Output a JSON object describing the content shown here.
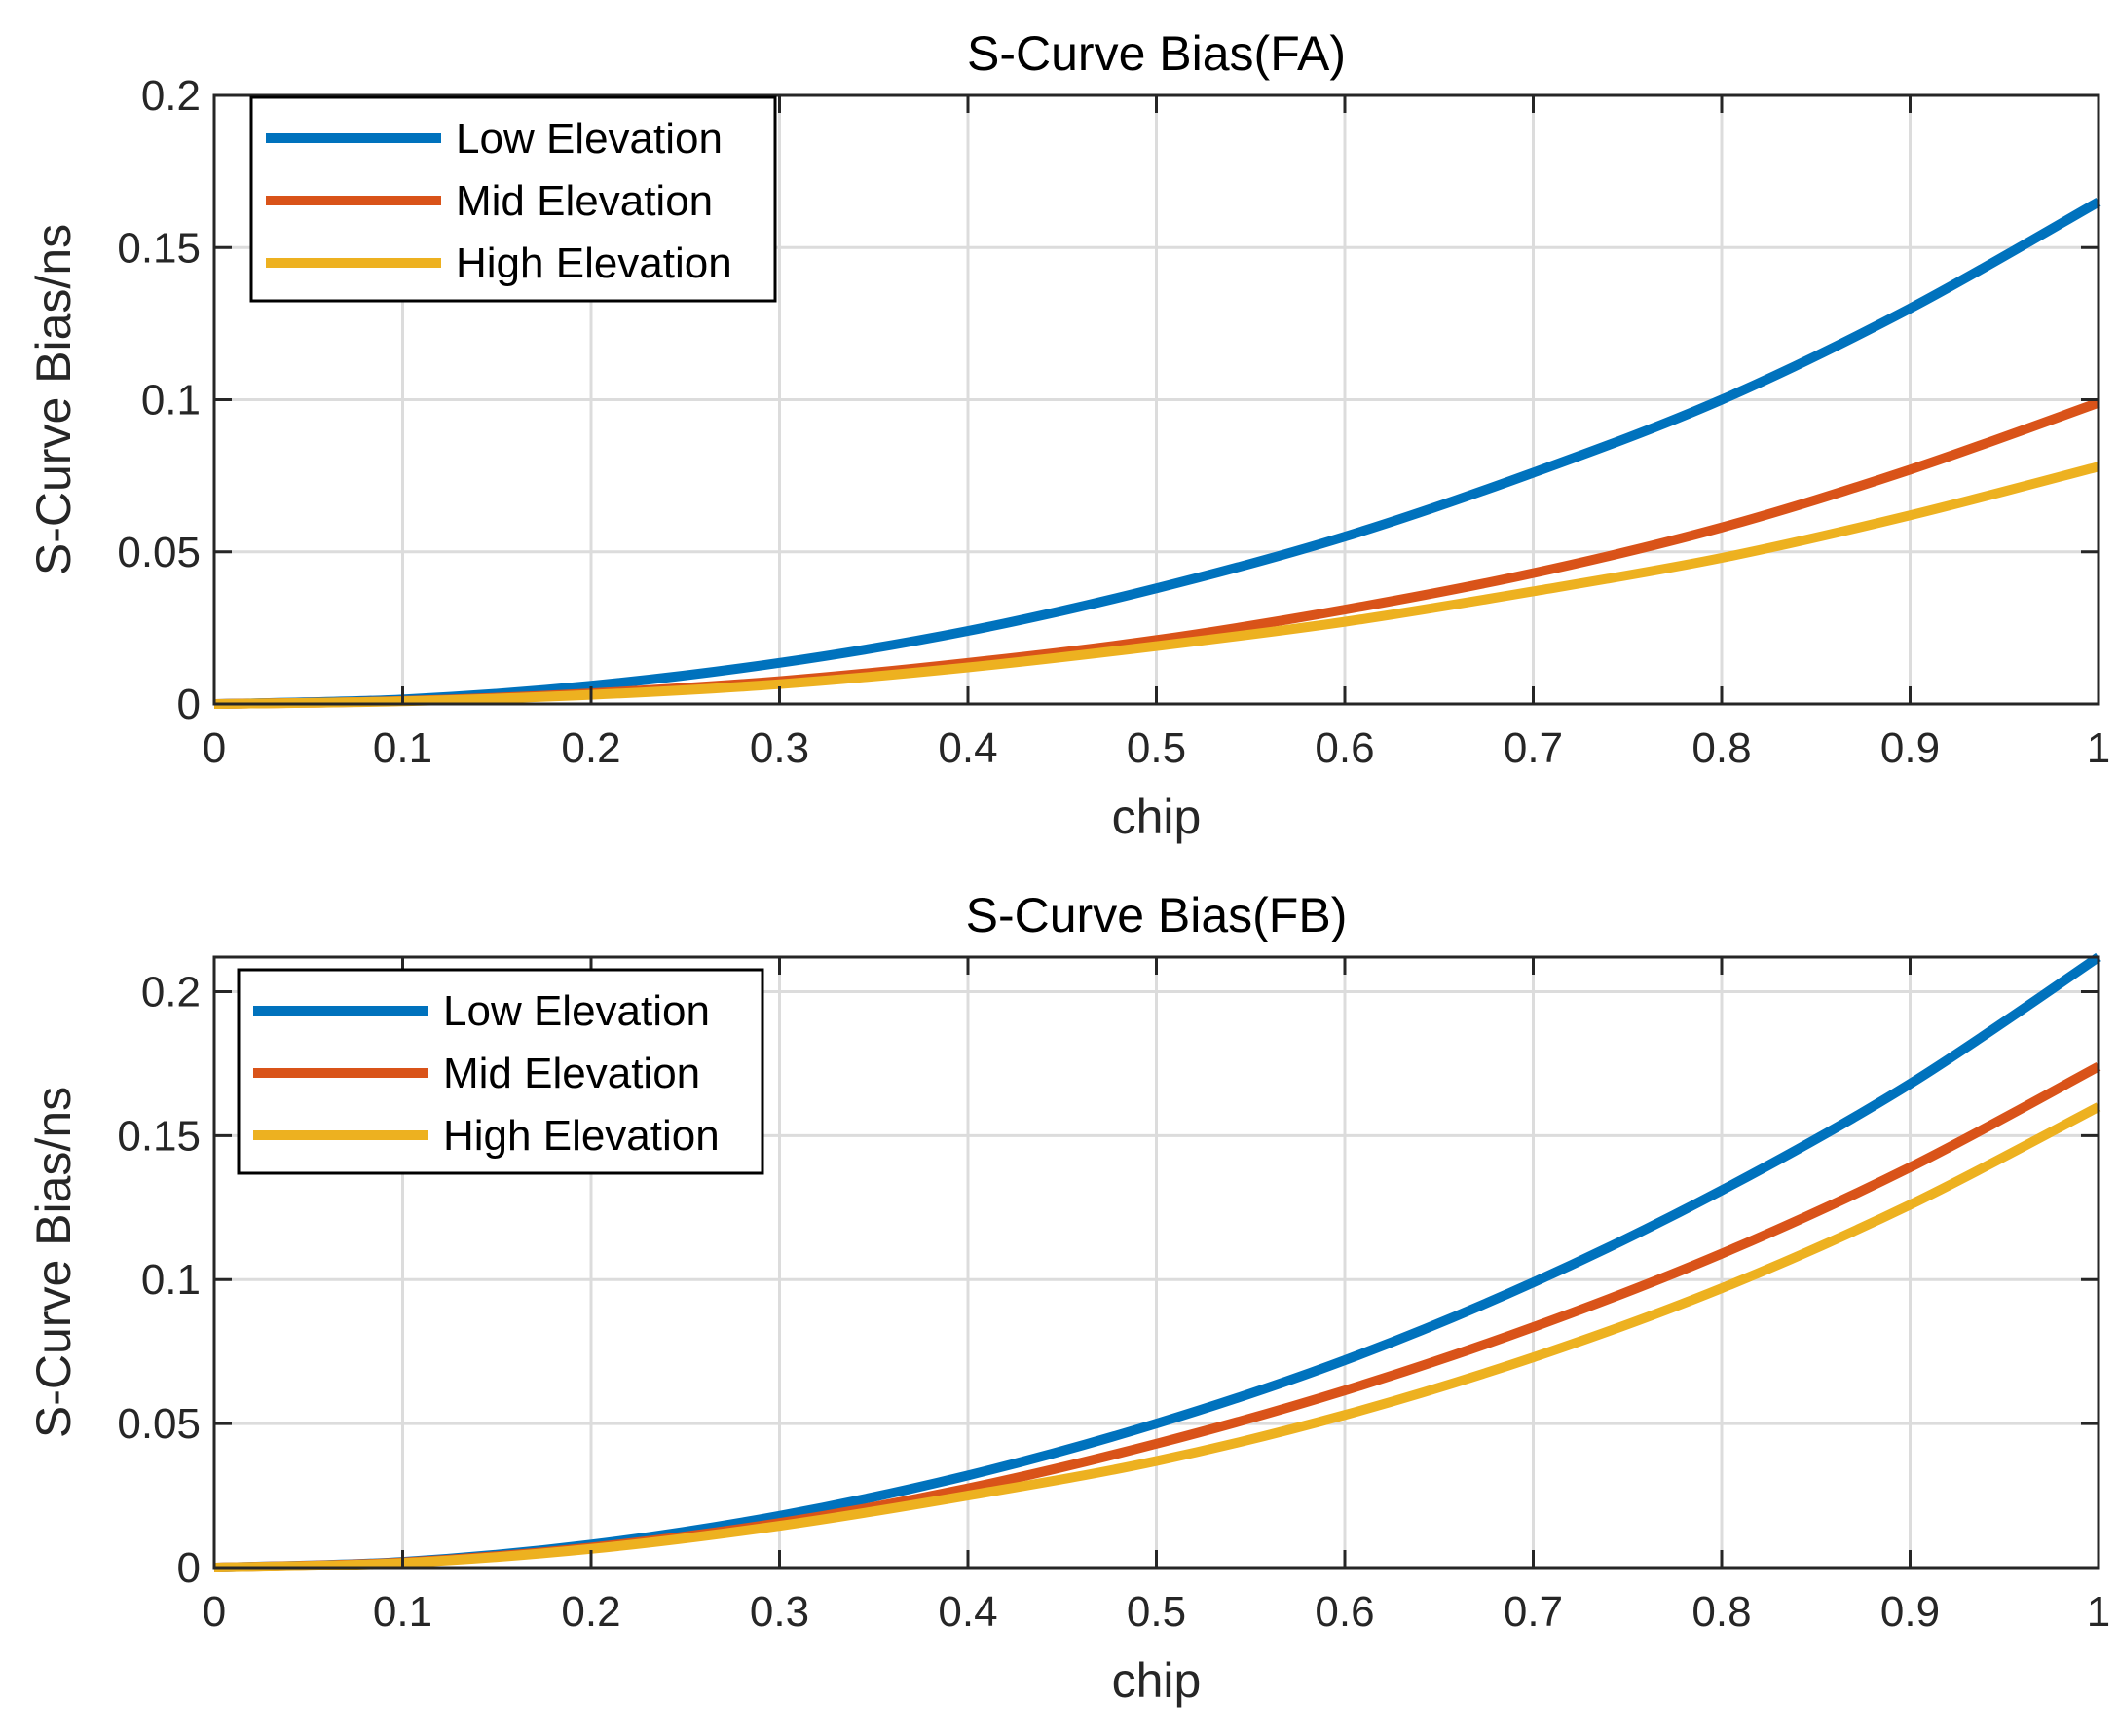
{
  "chart_data": [
    {
      "type": "line",
      "title": "S-Curve Bias(FA)",
      "xlabel": "chip",
      "ylabel": "S-Curve Bias/ns",
      "xlim": [
        0,
        1
      ],
      "ylim": [
        0,
        0.2
      ],
      "grid": true,
      "xticks": [
        0,
        0.1,
        0.2,
        0.3,
        0.4,
        0.5,
        0.6,
        0.7,
        0.8,
        0.9,
        1
      ],
      "xtick_labels": [
        "0",
        "0.1",
        "0.2",
        "0.3",
        "0.4",
        "0.5",
        "0.6",
        "0.7",
        "0.8",
        "0.9",
        "1"
      ],
      "yticks": [
        0,
        0.05,
        0.1,
        0.15,
        0.2
      ],
      "ytick_labels": [
        "0",
        "0.05",
        "0.1",
        "0.15",
        "0.2"
      ],
      "legend_position": "top-left",
      "x": [
        0,
        0.1,
        0.2,
        0.3,
        0.4,
        0.5,
        0.6,
        0.7,
        0.8,
        0.9,
        1.0
      ],
      "series": [
        {
          "name": "Low Elevation",
          "color": "#0072BD",
          "values": [
            0,
            0.0015,
            0.006,
            0.0135,
            0.024,
            0.038,
            0.055,
            0.076,
            0.1,
            0.13,
            0.165
          ]
        },
        {
          "name": "Mid Elevation",
          "color": "#D95319",
          "values": [
            0,
            0.001,
            0.0035,
            0.0075,
            0.0135,
            0.021,
            0.031,
            0.043,
            0.058,
            0.077,
            0.099
          ]
        },
        {
          "name": "High Elevation",
          "color": "#EDB120",
          "values": [
            0,
            0.0009,
            0.003,
            0.0065,
            0.012,
            0.019,
            0.027,
            0.037,
            0.048,
            0.062,
            0.078
          ]
        }
      ]
    },
    {
      "type": "line",
      "title": "S-Curve Bias(FB)",
      "xlabel": "chip",
      "ylabel": "S-Curve Bias/ns",
      "xlim": [
        0,
        1
      ],
      "ylim": [
        0,
        0.212
      ],
      "grid": true,
      "xticks": [
        0,
        0.1,
        0.2,
        0.3,
        0.4,
        0.5,
        0.6,
        0.7,
        0.8,
        0.9,
        1
      ],
      "xtick_labels": [
        "0",
        "0.1",
        "0.2",
        "0.3",
        "0.4",
        "0.5",
        "0.6",
        "0.7",
        "0.8",
        "0.9",
        "1"
      ],
      "yticks": [
        0,
        0.05,
        0.1,
        0.15,
        0.2
      ],
      "ytick_labels": [
        "0",
        "0.05",
        "0.1",
        "0.15",
        "0.2"
      ],
      "legend_position": "top-left",
      "x": [
        0,
        0.1,
        0.2,
        0.3,
        0.4,
        0.5,
        0.6,
        0.7,
        0.8,
        0.9,
        1.0
      ],
      "series": [
        {
          "name": "Low Elevation",
          "color": "#0072BD",
          "values": [
            0,
            0.002,
            0.008,
            0.018,
            0.032,
            0.05,
            0.072,
            0.099,
            0.131,
            0.168,
            0.212
          ]
        },
        {
          "name": "Mid Elevation",
          "color": "#D95319",
          "values": [
            0,
            0.0018,
            0.007,
            0.0155,
            0.0275,
            0.043,
            0.0615,
            0.0835,
            0.109,
            0.139,
            0.174
          ]
        },
        {
          "name": "High Elevation",
          "color": "#EDB120",
          "values": [
            0,
            0.0016,
            0.0065,
            0.0145,
            0.025,
            0.037,
            0.053,
            0.073,
            0.097,
            0.126,
            0.16
          ]
        }
      ]
    }
  ]
}
